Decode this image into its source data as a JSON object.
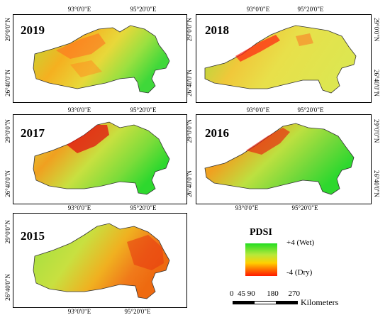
{
  "panels": [
    {
      "year": "2019",
      "lat_top": "29°0'0\"N",
      "lat_bottom": "26°40'0\"N",
      "lon_left": "93°0'0\"E",
      "lon_right": "95°20'0\"E",
      "dryness": "mixed"
    },
    {
      "year": "2018",
      "lat_top": "29°0'0\"N",
      "lat_bottom": "26°40'0\"N",
      "lon_left": "93°0'0\"E",
      "lon_right": "95°20'0\"E",
      "dryness": "moderate"
    },
    {
      "year": "2017",
      "lat_top": "29°0'0\"N",
      "lat_bottom": "26°40'0\"N",
      "lon_left": "93°0'0\"E",
      "lon_right": "95°20'0\"E",
      "dryness": "northwest-dry"
    },
    {
      "year": "2016",
      "lat_top": "29°0'0\"N",
      "lat_bottom": "26°40'0\"N",
      "lon_left": "93°0'0\"E",
      "lon_right": "95°20'0\"E",
      "dryness": "northwest-dry"
    },
    {
      "year": "2015",
      "lat_top": "29°0'0\"N",
      "lat_bottom": "26°40'0\"N",
      "lon_left": "93°0'0\"E",
      "lon_right": "95°20'0\"E",
      "dryness": "east-dry"
    }
  ],
  "legend": {
    "title": "PDSI",
    "high_label": "+4 (Wet)",
    "low_label": "-4 (Dry)",
    "colors": {
      "wet": "#22dd22",
      "mid": "#ffd000",
      "dry": "#ff1a00"
    }
  },
  "scale": {
    "ticks": "0  45 90      180     270",
    "unit": "Kilometers"
  }
}
